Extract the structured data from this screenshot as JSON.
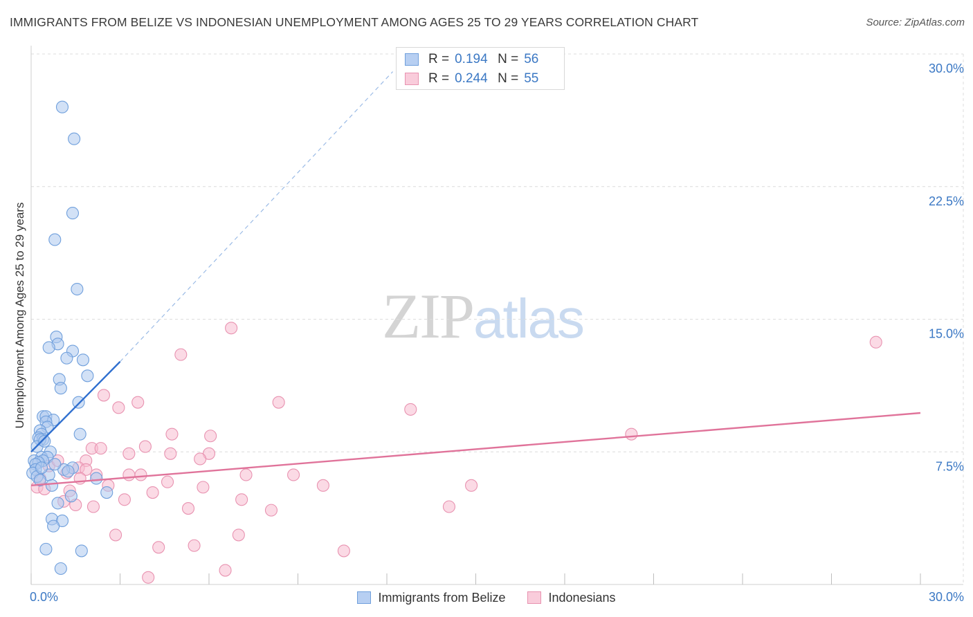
{
  "header": {
    "title": "IMMIGRANTS FROM BELIZE VS INDONESIAN UNEMPLOYMENT AMONG AGES 25 TO 29 YEARS CORRELATION CHART",
    "source": "Source: ZipAtlas.com"
  },
  "watermark": {
    "zip": "ZIP",
    "atlas": "atlas"
  },
  "stats": {
    "r_label": "R =",
    "n_label": "N =",
    "rows": [
      {
        "series": "Immigrants from Belize",
        "r": "0.194",
        "n": "56"
      },
      {
        "series": "Indonesians",
        "r": "0.244",
        "n": "55"
      }
    ]
  },
  "colors": {
    "belize_fill": "#adc9ef",
    "belize_stroke": "#6f9fdc",
    "belize_line": "#2f6fcf",
    "indo_fill": "#f7bcd0",
    "indo_stroke": "#e892b0",
    "indo_line": "#e0739a",
    "axis_text": "#3b78c4"
  },
  "chart_data": {
    "type": "scatter",
    "title": "IMMIGRANTS FROM BELIZE VS INDONESIAN UNEMPLOYMENT AMONG AGES 25 TO 29 YEARS CORRELATION CHART",
    "xlabel": "",
    "ylabel": "Unemployment Among Ages 25 to 29 years",
    "xlim": [
      0,
      30
    ],
    "ylim": [
      0,
      30
    ],
    "x_tick_labels": [
      "0.0%",
      "30.0%"
    ],
    "y_ticks": [
      {
        "value": 7.5,
        "label": "7.5%"
      },
      {
        "value": 15.0,
        "label": "15.0%"
      },
      {
        "value": 22.5,
        "label": "22.5%"
      },
      {
        "value": 30.0,
        "label": "30.0%"
      }
    ],
    "grid": true,
    "legend": [
      "Immigrants from Belize",
      "Indonesians"
    ],
    "series": [
      {
        "name": "Immigrants from Belize",
        "points": [
          [
            1.05,
            27.0
          ],
          [
            1.45,
            25.2
          ],
          [
            1.4,
            21.0
          ],
          [
            0.8,
            19.5
          ],
          [
            1.55,
            16.7
          ],
          [
            0.85,
            14.0
          ],
          [
            0.9,
            13.6
          ],
          [
            0.6,
            13.4
          ],
          [
            1.4,
            13.2
          ],
          [
            1.2,
            12.8
          ],
          [
            1.75,
            12.7
          ],
          [
            1.9,
            11.8
          ],
          [
            0.95,
            11.6
          ],
          [
            1.0,
            11.1
          ],
          [
            1.6,
            10.3
          ],
          [
            0.4,
            9.5
          ],
          [
            0.5,
            9.5
          ],
          [
            0.75,
            9.3
          ],
          [
            0.5,
            9.2
          ],
          [
            0.55,
            8.9
          ],
          [
            0.3,
            8.7
          ],
          [
            0.35,
            8.5
          ],
          [
            1.65,
            8.5
          ],
          [
            0.25,
            8.3
          ],
          [
            0.4,
            8.2
          ],
          [
            0.3,
            8.2
          ],
          [
            0.2,
            7.8
          ],
          [
            0.65,
            7.5
          ],
          [
            0.35,
            7.2
          ],
          [
            0.55,
            7.2
          ],
          [
            0.1,
            7.0
          ],
          [
            0.4,
            7.0
          ],
          [
            0.25,
            6.9
          ],
          [
            0.15,
            6.8
          ],
          [
            1.4,
            6.6
          ],
          [
            0.15,
            6.5
          ],
          [
            1.1,
            6.5
          ],
          [
            1.25,
            6.4
          ],
          [
            0.05,
            6.3
          ],
          [
            0.6,
            6.2
          ],
          [
            0.2,
            6.1
          ],
          [
            2.2,
            6.0
          ],
          [
            0.7,
            5.6
          ],
          [
            1.35,
            5.0
          ],
          [
            2.55,
            5.2
          ],
          [
            0.9,
            4.6
          ],
          [
            0.7,
            3.7
          ],
          [
            1.05,
            3.6
          ],
          [
            0.75,
            3.3
          ],
          [
            0.5,
            2.0
          ],
          [
            1.7,
            1.9
          ],
          [
            1.0,
            0.9
          ],
          [
            0.35,
            6.6
          ],
          [
            0.45,
            8.1
          ],
          [
            0.8,
            6.8
          ],
          [
            0.3,
            5.9
          ]
        ],
        "trend": {
          "x": [
            0.0,
            3.0
          ],
          "y": [
            7.5,
            12.6
          ],
          "dashed_extension_to": [
            12.2,
            29.0
          ]
        }
      },
      {
        "name": "Indonesians",
        "points": [
          [
            6.75,
            14.5
          ],
          [
            5.05,
            13.0
          ],
          [
            28.5,
            13.7
          ],
          [
            2.45,
            10.7
          ],
          [
            3.6,
            10.3
          ],
          [
            8.35,
            10.3
          ],
          [
            2.95,
            10.0
          ],
          [
            12.8,
            9.9
          ],
          [
            4.75,
            8.5
          ],
          [
            6.05,
            8.4
          ],
          [
            20.25,
            8.5
          ],
          [
            3.85,
            7.8
          ],
          [
            2.05,
            7.7
          ],
          [
            2.35,
            7.7
          ],
          [
            3.3,
            7.4
          ],
          [
            4.7,
            7.4
          ],
          [
            6.0,
            7.4
          ],
          [
            5.7,
            7.1
          ],
          [
            1.85,
            7.0
          ],
          [
            1.6,
            6.6
          ],
          [
            1.85,
            6.5
          ],
          [
            2.2,
            6.2
          ],
          [
            3.3,
            6.2
          ],
          [
            3.7,
            6.2
          ],
          [
            7.25,
            6.2
          ],
          [
            8.85,
            6.2
          ],
          [
            1.65,
            6.0
          ],
          [
            4.6,
            5.8
          ],
          [
            2.6,
            5.6
          ],
          [
            5.8,
            5.5
          ],
          [
            9.85,
            5.6
          ],
          [
            14.85,
            5.6
          ],
          [
            0.2,
            5.5
          ],
          [
            0.45,
            5.4
          ],
          [
            1.3,
            5.3
          ],
          [
            4.1,
            5.2
          ],
          [
            3.15,
            4.8
          ],
          [
            7.1,
            4.8
          ],
          [
            1.1,
            4.7
          ],
          [
            1.5,
            4.5
          ],
          [
            2.1,
            4.4
          ],
          [
            5.3,
            4.3
          ],
          [
            8.1,
            4.2
          ],
          [
            14.1,
            4.4
          ],
          [
            2.85,
            2.8
          ],
          [
            7.0,
            2.8
          ],
          [
            4.3,
            2.1
          ],
          [
            5.5,
            2.2
          ],
          [
            10.55,
            1.9
          ],
          [
            6.55,
            0.8
          ],
          [
            3.95,
            0.4
          ],
          [
            0.6,
            6.7
          ],
          [
            1.2,
            6.3
          ],
          [
            0.9,
            7.0
          ],
          [
            0.3,
            6.0
          ]
        ],
        "trend": {
          "x": [
            0.0,
            30.0
          ],
          "y": [
            5.6,
            9.7
          ]
        }
      }
    ]
  }
}
